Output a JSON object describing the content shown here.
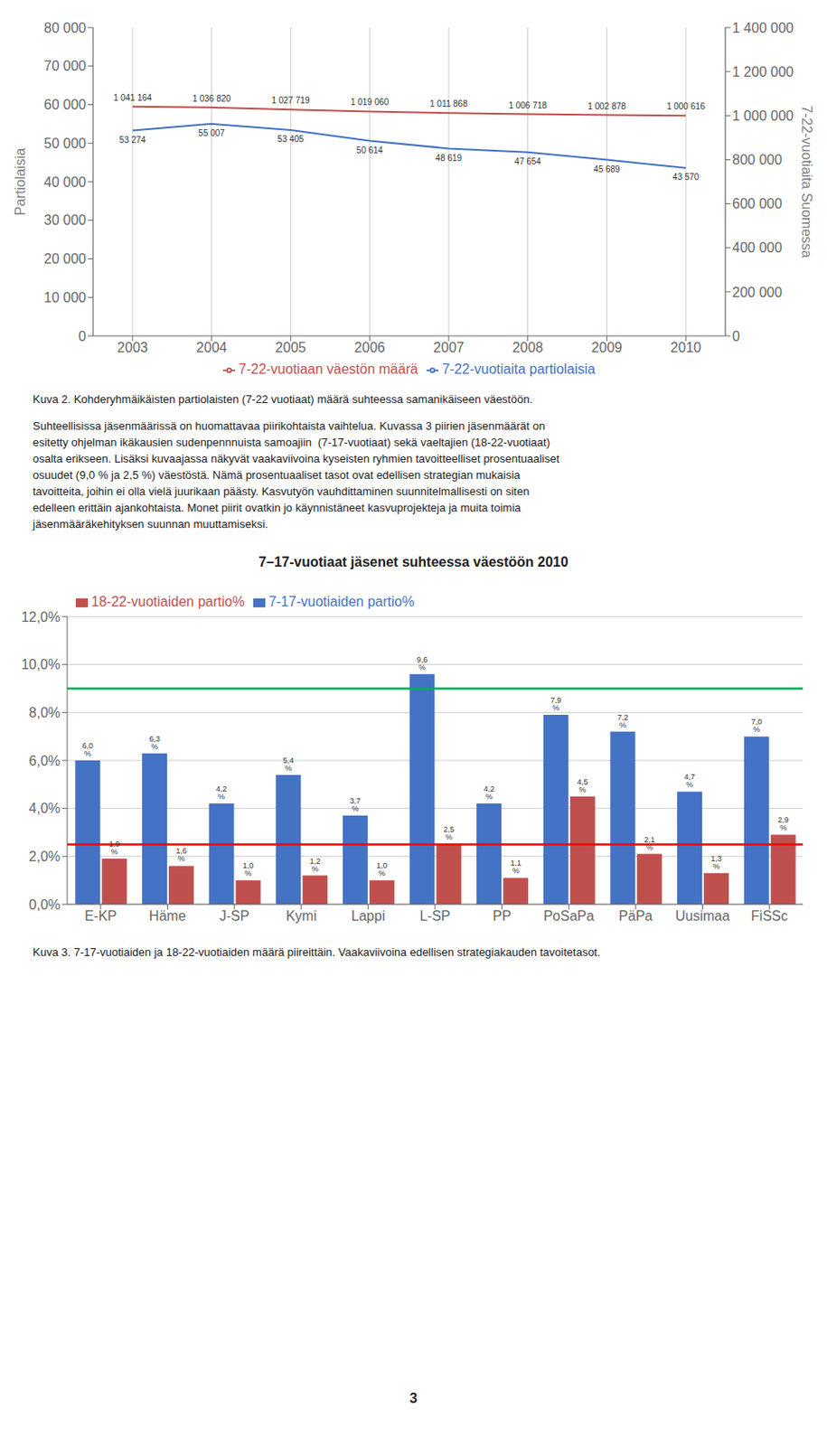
{
  "chart_data": [
    {
      "type": "line",
      "x": [
        2003,
        2004,
        2005,
        2006,
        2007,
        2008,
        2009,
        2010
      ],
      "xlim": [
        2002.5,
        2010.5
      ],
      "xticks": [
        2003,
        2004,
        2005,
        2006,
        2007,
        2008,
        2009,
        2010
      ],
      "ylabel": "Partiolaisia",
      "y2label": "7-22-vuotiaita Suomessa",
      "ylim": [
        0,
        80000
      ],
      "yticks": [
        0,
        {
          "value": 10000,
          "label": "10 000"
        },
        {
          "value": 20000,
          "label": "20 000"
        },
        {
          "value": 30000,
          "label": "30 000"
        },
        {
          "value": 40000,
          "label": "40 000"
        },
        {
          "value": 50000,
          "label": "50 000"
        },
        {
          "value": 60000,
          "label": "60 000"
        },
        {
          "value": 70000,
          "label": "70 000"
        },
        {
          "value": 80000,
          "label": "80 000"
        }
      ],
      "y2lim": [
        0,
        1400000
      ],
      "y2ticks": [
        0,
        {
          "value": 200000,
          "label": "200 000"
        },
        {
          "value": 400000,
          "label": "400 000"
        },
        {
          "value": 600000,
          "label": "600 000"
        },
        {
          "value": 800000,
          "label": "800 000"
        },
        {
          "value": 1000000,
          "label": "1 000 000"
        },
        {
          "value": 1200000,
          "label": "1 200 000"
        },
        {
          "value": 1400000,
          "label": "1 400 000"
        }
      ],
      "series": [
        {
          "name": "7-22-vuotiaita partiolaisia",
          "color": "#4472C4",
          "values": [
            53274,
            55007,
            53405,
            50614,
            48619,
            47654,
            45689,
            43570
          ],
          "value_labels": [
            "53 274",
            "55 007",
            "53 405",
            "50 614",
            "48 619",
            "47 654",
            "45 689",
            "43 570"
          ]
        },
        {
          "name": "7-22-vuotiaan väestön määrä",
          "color": "#C0504D",
          "axis": "y2",
          "values": [
            1041164,
            1036820,
            1027719,
            1019060,
            1011868,
            1006718,
            1002878,
            1000616
          ],
          "value_labels": [
            "1 041 164",
            "1 036 820",
            "1 027 719",
            "1 019 060",
            "1 011 868",
            "1 006 718",
            "1 002 878",
            "1 000 616"
          ]
        }
      ],
      "data_labels": true,
      "grid": "x",
      "legend": "bottom",
      "annotations": [
        "Kuva 2. Kohderyhmäikäisten partiolaisten (7-22 vuotiaat) määrä suhteessa samanikäiseen väestöön.",
        "Suhteellisissa jäsenmäärissä on huomattavaa piirikohtaista vaihtelua. Kuvassa 3 piirien jäsenmäärät on",
        "esitetty ohjelman ikäkausien sudenpennnuista samoajiin  (7-17-vuotiaat) sekä vaeltajien (18-22-vuotiaat)",
        "osalta erikseen. Lisäksi kuvaajassa näkyvät vaakaviivoina kyseisten ryhmien tavoitteelliset prosentuaaliset",
        "osuudet (9,0 % ja 2,5 %) väestöstä. Nämä prosentuaaliset tasot ovat edellisen strategian mukaisia",
        "tavoitteita, joihin ei olla vielä juurikaan päästy. Kasvutyön vauhdittaminen suunnitelmallisesti on siten",
        "edelleen erittäin ajankohtaista. Monet piirit ovatkin jo käynnistäneet kasvuprojekteja ja muita toimia",
        "jäsenmääräkehityksen suunnan muuttamiseksi."
      ]
    },
    {
      "type": "bar",
      "title": "7–17-vuotiaat jäsenet suhteessa väestöön 2010",
      "categories": [
        "E-KP",
        "Häme",
        "J-SP",
        "Kymi",
        "Lappi",
        "L-SP",
        "PP",
        "PoSaPa",
        "PäPa",
        "Uusimaa",
        "FiSSc"
      ],
      "series": [
        {
          "name": "7-17-vuotiaiden partio%",
          "color": "#4472C4",
          "values": [
            6.0,
            6.3,
            4.2,
            5.4,
            3.7,
            9.6,
            4.2,
            7.9,
            7.2,
            4.7,
            7.0
          ],
          "value_labels": [
            "6,0 %",
            "6,3 %",
            "4,2 %",
            "5,4 %",
            "3,7 %",
            "9,6 %",
            "4,2 %",
            "7,9 %",
            "7,2 %",
            "4,7 %",
            "7,0 %"
          ]
        },
        {
          "name": "18-22-vuotiaiden partio%",
          "color": "#C0504D",
          "values": [
            1.9,
            1.6,
            1.0,
            1.2,
            1.0,
            2.5,
            1.1,
            4.5,
            2.1,
            1.3,
            2.9
          ],
          "value_labels": [
            "1,9 %",
            "1,6 %",
            "1,0 %",
            "1,2 %",
            "1,0 %",
            "2,5 %",
            "1,1 %",
            "4,5 %",
            "2,1 %",
            "1,3 %",
            "2,9 %"
          ]
        }
      ],
      "reference_lines": [
        {
          "value": 9.0,
          "color": "#00B050"
        },
        {
          "value": 2.5,
          "color": "#FF0000"
        }
      ],
      "ylim": [
        0,
        12.0
      ],
      "yticks": [
        {
          "value": 0.0,
          "label": "0,0%"
        },
        {
          "value": 2.0,
          "label": "2,0%"
        },
        {
          "value": 4.0,
          "label": "4,0%"
        },
        {
          "value": 6.0,
          "label": "6,0%"
        },
        {
          "value": 8.0,
          "label": "8,0%"
        },
        {
          "value": 10.0,
          "label": "10,0%"
        },
        {
          "value": 12.0,
          "label": "12,0%"
        }
      ],
      "data_labels": true,
      "grid": "y",
      "legend": "upper left",
      "annotations": [
        "Kuva 3. 7-17-vuotiaiden ja 18-22-vuotiaiden määrä piireittäin. Vaakaviivoina edellisen strategiakauden tavoitetasot.",
        "3"
      ]
    }
  ]
}
